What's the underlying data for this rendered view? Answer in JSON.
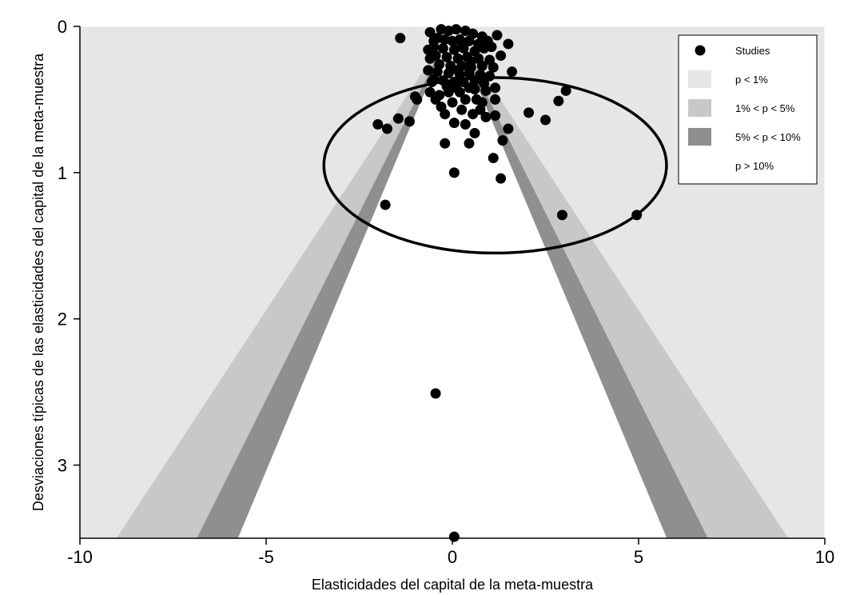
{
  "chart_data": {
    "type": "scatter",
    "title": "",
    "xlabel": "Elasticidades del capital de la meta-muestra",
    "ylabel": "Desviaciones típicas de las elasticidades del capital de la meta-muestra",
    "xlim": [
      -10,
      10
    ],
    "ylim": [
      0,
      3.5
    ],
    "y_reversed": true,
    "x_ticks": [
      {
        "value": -10,
        "label": "-10"
      },
      {
        "value": -5,
        "label": "-5"
      },
      {
        "value": 0,
        "label": "0"
      },
      {
        "value": 5,
        "label": "5"
      },
      {
        "value": 10,
        "label": "10"
      }
    ],
    "y_ticks": [
      {
        "value": 0,
        "label": "0"
      },
      {
        "value": 1,
        "label": "1"
      },
      {
        "value": 2,
        "label": "2"
      },
      {
        "value": 3,
        "label": "3"
      }
    ],
    "contour_regions": [
      {
        "label": "p < 1%",
        "z": 2.576,
        "color": "#e6e6e6"
      },
      {
        "label": "1% < p < 5%",
        "z": 1.96,
        "color": "#c8c8c8"
      },
      {
        "label": "5% < p < 10%",
        "z": 1.645,
        "color": "#8f8f8f"
      },
      {
        "label": "p > 10%",
        "color": "#ffffff"
      }
    ],
    "legend": {
      "position": "top-right",
      "entries": [
        {
          "label": "Studies",
          "marker": "point",
          "color": "#000000"
        },
        {
          "label": "p < 1%",
          "marker": "box",
          "color": "#e6e6e6"
        },
        {
          "label": "1% < p < 5%",
          "marker": "box",
          "color": "#c8c8c8"
        },
        {
          "label": "5% < p < 10%",
          "marker": "box",
          "color": "#8f8f8f"
        },
        {
          "label": "p > 10%",
          "marker": "box",
          "color": "#ffffff"
        }
      ]
    },
    "annotation_ellipse": {
      "center_x": 1.15,
      "center_y": 0.95,
      "radius_x": 4.6,
      "radius_y": 0.6
    },
    "series": [
      {
        "name": "Studies",
        "points": [
          [
            -1.4,
            0.08
          ],
          [
            -0.6,
            0.04
          ],
          [
            -0.5,
            0.1
          ],
          [
            -0.65,
            0.16
          ],
          [
            -0.6,
            0.22
          ],
          [
            -0.65,
            0.3
          ],
          [
            -0.55,
            0.38
          ],
          [
            -0.6,
            0.45
          ],
          [
            -0.5,
            0.36
          ],
          [
            -0.45,
            0.5
          ],
          [
            -0.3,
            0.55
          ],
          [
            -0.2,
            0.6
          ],
          [
            -1.0,
            0.48
          ],
          [
            -0.95,
            0.5
          ],
          [
            -1.15,
            0.65
          ],
          [
            -1.45,
            0.63
          ],
          [
            -2.0,
            0.67
          ],
          [
            -1.75,
            0.7
          ],
          [
            -1.8,
            1.22
          ],
          [
            -0.2,
            0.8
          ],
          [
            0.05,
            0.66
          ],
          [
            0.05,
            1.0
          ],
          [
            0.35,
            0.67
          ],
          [
            0.45,
            0.8
          ],
          [
            0.6,
            0.73
          ],
          [
            0.9,
            0.62
          ],
          [
            1.15,
            0.61
          ],
          [
            1.5,
            0.7
          ],
          [
            1.35,
            0.78
          ],
          [
            1.1,
            0.9
          ],
          [
            1.3,
            1.04
          ],
          [
            2.05,
            0.59
          ],
          [
            2.5,
            0.64
          ],
          [
            2.85,
            0.51
          ],
          [
            3.05,
            0.44
          ],
          [
            2.95,
            1.29
          ],
          [
            4.95,
            1.29
          ],
          [
            1.6,
            0.31
          ],
          [
            1.5,
            0.12
          ],
          [
            1.2,
            0.06
          ],
          [
            1.3,
            0.2
          ],
          [
            1.15,
            0.5
          ],
          [
            1.15,
            0.42
          ],
          [
            0.8,
            0.52
          ],
          [
            0.25,
            0.57
          ],
          [
            0.55,
            0.6
          ],
          [
            0.65,
            0.5
          ],
          [
            -0.1,
            0.45
          ],
          [
            0.2,
            0.45
          ],
          [
            0.45,
            0.42
          ],
          [
            -0.45,
            2.51
          ],
          [
            0.05,
            3.49
          ],
          [
            -0.3,
            0.02
          ],
          [
            -0.1,
            0.03
          ],
          [
            0.1,
            0.02
          ],
          [
            0.35,
            0.03
          ],
          [
            0.55,
            0.05
          ],
          [
            0.8,
            0.07
          ],
          [
            -0.4,
            0.08
          ],
          [
            -0.2,
            0.09
          ],
          [
            0.0,
            0.1
          ],
          [
            0.2,
            0.09
          ],
          [
            0.45,
            0.1
          ],
          [
            0.7,
            0.12
          ],
          [
            0.95,
            0.1
          ],
          [
            -0.5,
            0.14
          ],
          [
            -0.25,
            0.15
          ],
          [
            0.05,
            0.16
          ],
          [
            0.3,
            0.15
          ],
          [
            0.6,
            0.17
          ],
          [
            0.85,
            0.15
          ],
          [
            1.05,
            0.14
          ],
          [
            -0.45,
            0.2
          ],
          [
            -0.15,
            0.21
          ],
          [
            0.15,
            0.22
          ],
          [
            0.4,
            0.21
          ],
          [
            0.7,
            0.22
          ],
          [
            1.0,
            0.23
          ],
          [
            -0.35,
            0.26
          ],
          [
            -0.05,
            0.27
          ],
          [
            0.25,
            0.27
          ],
          [
            0.5,
            0.28
          ],
          [
            0.8,
            0.27
          ],
          [
            1.1,
            0.28
          ],
          [
            -0.4,
            0.31
          ],
          [
            -0.1,
            0.32
          ],
          [
            0.2,
            0.33
          ],
          [
            0.45,
            0.32
          ],
          [
            0.75,
            0.33
          ],
          [
            1.0,
            0.34
          ],
          [
            -0.25,
            0.37
          ],
          [
            0.05,
            0.38
          ],
          [
            0.3,
            0.38
          ],
          [
            0.6,
            0.37
          ],
          [
            0.85,
            0.39
          ],
          [
            -0.15,
            0.41
          ],
          [
            0.1,
            0.42
          ],
          [
            0.6,
            0.43
          ],
          [
            0.9,
            0.44
          ],
          [
            0.35,
            0.5
          ],
          [
            0.0,
            0.52
          ],
          [
            -0.35,
            0.47
          ],
          [
            0.75,
            0.57
          ],
          [
            0.15,
            0.3
          ],
          [
            0.25,
            0.12
          ],
          [
            0.5,
            0.24
          ]
        ]
      }
    ]
  }
}
